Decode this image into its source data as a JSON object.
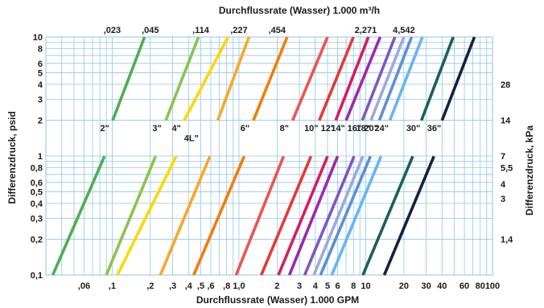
{
  "chart_data": {
    "type": "line",
    "title": "Durchflussrate (Wasser) 1.000 m³/h",
    "xlabel": "Durchflussrate (Wasser) 1.000 GPM",
    "ylabel": "Differenzdruck, psid",
    "ylabel_right": "Differenzdruck, kPa",
    "x_scale": "log",
    "y_scale": "log",
    "xlim": [
      0.03,
      100
    ],
    "ylim": [
      0.1,
      10
    ],
    "grid": true,
    "x_ticks": [
      {
        "value": 0.06,
        "label": ",06"
      },
      {
        "value": 0.1,
        "label": ",1"
      },
      {
        "value": 0.2,
        "label": ",2"
      },
      {
        "value": 0.3,
        "label": ",3"
      },
      {
        "value": 0.4,
        "label": ",4"
      },
      {
        "value": 0.5,
        "label": ",5"
      },
      {
        "value": 0.6,
        "label": ",6"
      },
      {
        "value": 0.8,
        "label": ",8"
      },
      {
        "value": 1,
        "label": "1,0"
      },
      {
        "value": 2,
        "label": "2"
      },
      {
        "value": 3,
        "label": "3"
      },
      {
        "value": 4,
        "label": "4"
      },
      {
        "value": 5,
        "label": "5"
      },
      {
        "value": 6,
        "label": "6"
      },
      {
        "value": 8,
        "label": "8"
      },
      {
        "value": 10,
        "label": "10"
      },
      {
        "value": 20,
        "label": "20"
      },
      {
        "value": 30,
        "label": "30"
      },
      {
        "value": 40,
        "label": "40"
      },
      {
        "value": 60,
        "label": "60"
      },
      {
        "value": 80,
        "label": "80"
      },
      {
        "value": 100,
        "label": "100"
      }
    ],
    "x_ticks_top": [
      {
        "value": 0.1,
        "label": ",023"
      },
      {
        "value": 0.2,
        "label": ",045"
      },
      {
        "value": 0.5,
        "label": ",114"
      },
      {
        "value": 1,
        "label": ",227"
      },
      {
        "value": 2,
        "label": ",454"
      },
      {
        "value": 10,
        "label": "2,271"
      },
      {
        "value": 20,
        "label": "4,542"
      }
    ],
    "y_ticks": [
      {
        "value": 0.1,
        "label": "0,1"
      },
      {
        "value": 0.2,
        "label": "0,2"
      },
      {
        "value": 0.3,
        "label": "0,3"
      },
      {
        "value": 0.4,
        "label": "0,4"
      },
      {
        "value": 0.5,
        "label": "0,5"
      },
      {
        "value": 0.6,
        "label": "0,6"
      },
      {
        "value": 0.8,
        "label": "0,8"
      },
      {
        "value": 1,
        "label": "1"
      },
      {
        "value": 2,
        "label": "2"
      },
      {
        "value": 3,
        "label": "3"
      },
      {
        "value": 4,
        "label": "4"
      },
      {
        "value": 5,
        "label": "5"
      },
      {
        "value": 6,
        "label": "6"
      },
      {
        "value": 8,
        "label": "8"
      },
      {
        "value": 10,
        "label": "10"
      }
    ],
    "y_ticks_right": [
      {
        "value": 0.2,
        "label": "1,4"
      },
      {
        "value": 0.44,
        "label": "3"
      },
      {
        "value": 0.58,
        "label": "4"
      },
      {
        "value": 0.8,
        "label": "5,5"
      },
      {
        "value": 1,
        "label": "7"
      },
      {
        "value": 2,
        "label": "14"
      },
      {
        "value": 4,
        "label": "28"
      }
    ],
    "y_grid_values": [
      0.1,
      0.2,
      0.3,
      0.4,
      0.5,
      0.6,
      0.7,
      0.8,
      0.9,
      1,
      2,
      3,
      4,
      5,
      6,
      7,
      8,
      9,
      10
    ],
    "x_grid_values": [
      0.03,
      0.04,
      0.05,
      0.06,
      0.07,
      0.08,
      0.09,
      0.1,
      0.2,
      0.3,
      0.4,
      0.5,
      0.6,
      0.7,
      0.8,
      0.9,
      1,
      2,
      3,
      4,
      5,
      6,
      7,
      8,
      9,
      10,
      20,
      30,
      40,
      50,
      60,
      70,
      80,
      90,
      100
    ],
    "label_y": 1.73,
    "series": [
      {
        "name": "2\"",
        "color": "#4caf50",
        "x": [
          0.034,
          0.087,
          0.101,
          0.18
        ]
      },
      {
        "name": "3\"",
        "color": "#8bc34a",
        "x": [
          0.09,
          0.22,
          0.265,
          0.48
        ]
      },
      {
        "name": "4\"",
        "color": "#ffd600",
        "x": [
          0.11,
          0.32,
          0.37,
          0.82
        ]
      },
      {
        "name": "4L\"",
        "color": "#f9a825",
        "x": [
          0.24,
          0.59,
          0.68,
          1.2
        ]
      },
      {
        "name": "6\"",
        "color": "#f57c00",
        "x": [
          0.44,
          1.1,
          1.3,
          2.4
        ]
      },
      {
        "name": "8\"",
        "color": "#ef5350",
        "x": [
          0.95,
          2.25,
          2.65,
          5.0
        ]
      },
      {
        "name": "10\"",
        "color": "#e53935",
        "x": [
          1.5,
          3.7,
          4.3,
          8.0
        ]
      },
      {
        "name": "12\"",
        "color": "#d81b60",
        "x": [
          2.05,
          5.0,
          5.8,
          10.5
        ]
      },
      {
        "name": "14\"",
        "color": "#9c27b0",
        "x": [
          2.5,
          6.0,
          7.0,
          13.0
        ]
      },
      {
        "name": "16\"",
        "color": "#7e57c2",
        "x": [
          3.3,
          8.1,
          9.4,
          17.0
        ]
      },
      {
        "name": "18\"",
        "color": "#9fa8da",
        "x": [
          3.9,
          9.5,
          11.0,
          20.0
        ]
      },
      {
        "name": "20\"",
        "color": "#5c8fd6",
        "x": [
          4.4,
          10.9,
          12.8,
          23.0
        ]
      },
      {
        "name": "24\"",
        "color": "#64b5f6",
        "x": [
          5.4,
          13.2,
          15.5,
          28.0
        ]
      },
      {
        "name": "30\"",
        "color": "#1a5f5a",
        "x": [
          9.5,
          23.5,
          27.5,
          49.0
        ]
      },
      {
        "name": "36\"",
        "color": "#16213e",
        "x": [
          14.0,
          34.5,
          40.0,
          72.0
        ]
      }
    ],
    "series_y": [
      0.1,
      0.995,
      1.99,
      10
    ]
  }
}
